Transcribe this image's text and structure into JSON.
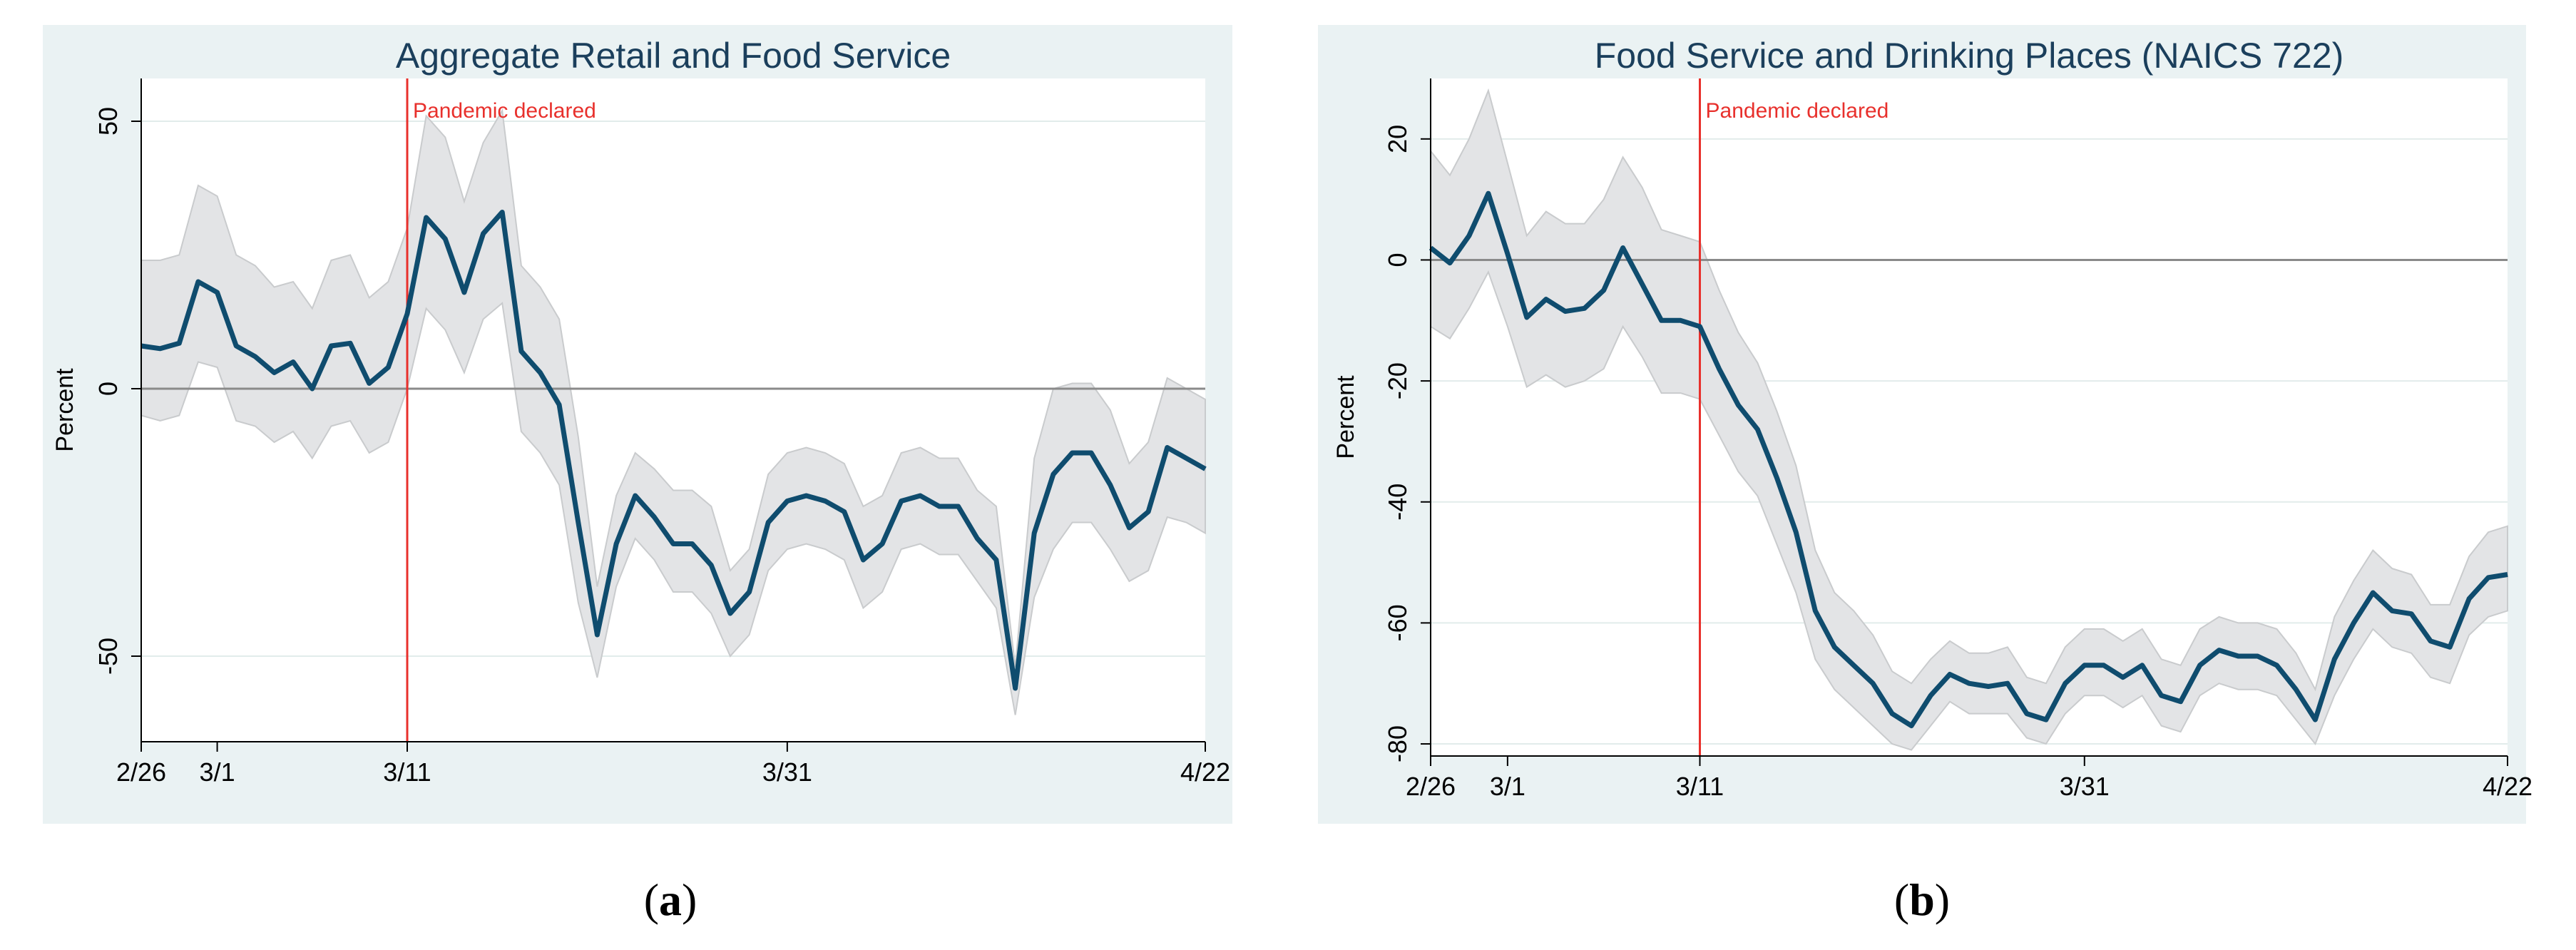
{
  "chart_data": [
    {
      "type": "line",
      "id": "a",
      "title": "Aggregate Retail and Food Service",
      "xlabel": "",
      "ylabel": "Percent",
      "ylim": [
        -66,
        58
      ],
      "yticks": [
        50,
        0,
        -50
      ],
      "xlim": [
        0,
        56
      ],
      "xticks": [
        {
          "x": 0,
          "label": "2/26"
        },
        {
          "x": 4,
          "label": "3/1"
        },
        {
          "x": 14,
          "label": "3/11"
        },
        {
          "x": 34,
          "label": "3/31"
        },
        {
          "x": 56,
          "label": "4/22"
        }
      ],
      "event": {
        "x": 14,
        "label": "Pandemic declared",
        "color": "#e8302c"
      },
      "reference_y": 0,
      "series": [
        {
          "name": "estimate",
          "color": "#0f4c6e",
          "values": [
            8,
            7.5,
            8.5,
            20,
            18,
            8,
            6,
            3,
            5,
            0,
            8,
            8.5,
            1,
            4,
            14,
            32,
            28,
            18,
            29,
            33,
            7,
            3,
            -3,
            -25,
            -46,
            -29,
            -20,
            -24,
            -29,
            -29,
            -33,
            -42,
            -38,
            -25,
            -21,
            -20,
            -21,
            -23,
            -32,
            -29,
            -21,
            -20,
            -22,
            -22,
            -28,
            -32,
            -56,
            -27,
            -16,
            -12,
            -12,
            -18,
            -26,
            -23,
            -11,
            -13,
            -15
          ]
        },
        {
          "name": "ci_upper",
          "values": [
            24,
            24,
            25,
            38,
            36,
            25,
            23,
            19,
            20,
            15,
            24,
            25,
            17,
            20,
            30,
            51,
            47,
            35,
            46,
            52,
            23,
            19,
            13,
            -9,
            -37,
            -20,
            -12,
            -15,
            -19,
            -19,
            -22,
            -34,
            -30,
            -16,
            -12,
            -11,
            -12,
            -14,
            -22,
            -20,
            -12,
            -11,
            -13,
            -13,
            -19,
            -22,
            -52,
            -13,
            0,
            1,
            1,
            -4,
            -14,
            -10,
            2,
            0,
            -2
          ]
        },
        {
          "name": "ci_lower",
          "values": [
            -5,
            -6,
            -5,
            5,
            4,
            -6,
            -7,
            -10,
            -8,
            -13,
            -7,
            -6,
            -12,
            -10,
            0,
            15,
            11,
            3,
            13,
            16,
            -8,
            -12,
            -18,
            -40,
            -54,
            -37,
            -28,
            -32,
            -38,
            -38,
            -42,
            -50,
            -46,
            -34,
            -30,
            -29,
            -30,
            -32,
            -41,
            -38,
            -30,
            -29,
            -31,
            -31,
            -36,
            -41,
            -61,
            -39,
            -30,
            -25,
            -25,
            -30,
            -36,
            -34,
            -24,
            -25,
            -27
          ]
        }
      ]
    },
    {
      "type": "line",
      "id": "b",
      "title": "Food Service and Drinking Places (NAICS 722)",
      "xlabel": "",
      "ylabel": "Percent",
      "ylim": [
        -82,
        30
      ],
      "yticks": [
        20,
        0,
        -20,
        -40,
        -60,
        -80
      ],
      "xlim": [
        0,
        56
      ],
      "xticks": [
        {
          "x": 0,
          "label": "2/26"
        },
        {
          "x": 4,
          "label": "3/1"
        },
        {
          "x": 14,
          "label": "3/11"
        },
        {
          "x": 34,
          "label": "3/31"
        },
        {
          "x": 56,
          "label": "4/22"
        }
      ],
      "event": {
        "x": 14,
        "label": "Pandemic declared",
        "color": "#e8302c"
      },
      "reference_y": 0,
      "series": [
        {
          "name": "estimate",
          "color": "#0f4c6e",
          "values": [
            2,
            -0.5,
            4,
            11,
            1,
            -9.5,
            -6.5,
            -8.5,
            -8,
            -5,
            2,
            -4,
            -10,
            -10,
            -11,
            -18,
            -24,
            -28,
            -36,
            -45,
            -58,
            -64,
            -67,
            -70,
            -75,
            -77,
            -72,
            -68.5,
            -70,
            -70.5,
            -70,
            -75,
            -76,
            -70,
            -67,
            -67,
            -69,
            -67,
            -72,
            -73,
            -67,
            -64.5,
            -65.5,
            -65.5,
            -67,
            -71,
            -76,
            -66,
            -60,
            -55,
            -58,
            -58.5,
            -63,
            -64,
            -56,
            -52.5,
            -52
          ]
        },
        {
          "name": "ci_upper",
          "values": [
            18,
            14,
            20,
            28,
            16,
            4,
            8,
            6,
            6,
            10,
            17,
            12,
            5,
            4,
            3,
            -5,
            -12,
            -17,
            -25,
            -34,
            -48,
            -55,
            -58,
            -62,
            -68,
            -70,
            -66,
            -63,
            -65,
            -65,
            -64,
            -69,
            -70,
            -64,
            -61,
            -61,
            -63,
            -61,
            -66,
            -67,
            -61,
            -59,
            -60,
            -60,
            -61,
            -65,
            -71,
            -59,
            -53,
            -48,
            -51,
            -52,
            -57,
            -57,
            -49,
            -45,
            -44
          ]
        },
        {
          "name": "ci_lower",
          "values": [
            -11,
            -13,
            -8,
            -2,
            -11,
            -21,
            -19,
            -21,
            -20,
            -18,
            -11,
            -16,
            -22,
            -22,
            -23,
            -29,
            -35,
            -39,
            -47,
            -55,
            -66,
            -71,
            -74,
            -77,
            -80,
            -81,
            -77,
            -73,
            -75,
            -75,
            -75,
            -79,
            -80,
            -75,
            -72,
            -72,
            -74,
            -72,
            -77,
            -78,
            -72,
            -70,
            -71,
            -71,
            -72,
            -76,
            -80,
            -72,
            -66,
            -61,
            -64,
            -65,
            -69,
            -70,
            -62,
            -59,
            -58
          ]
        }
      ]
    }
  ],
  "captions": {
    "a": "a",
    "b": "b"
  }
}
